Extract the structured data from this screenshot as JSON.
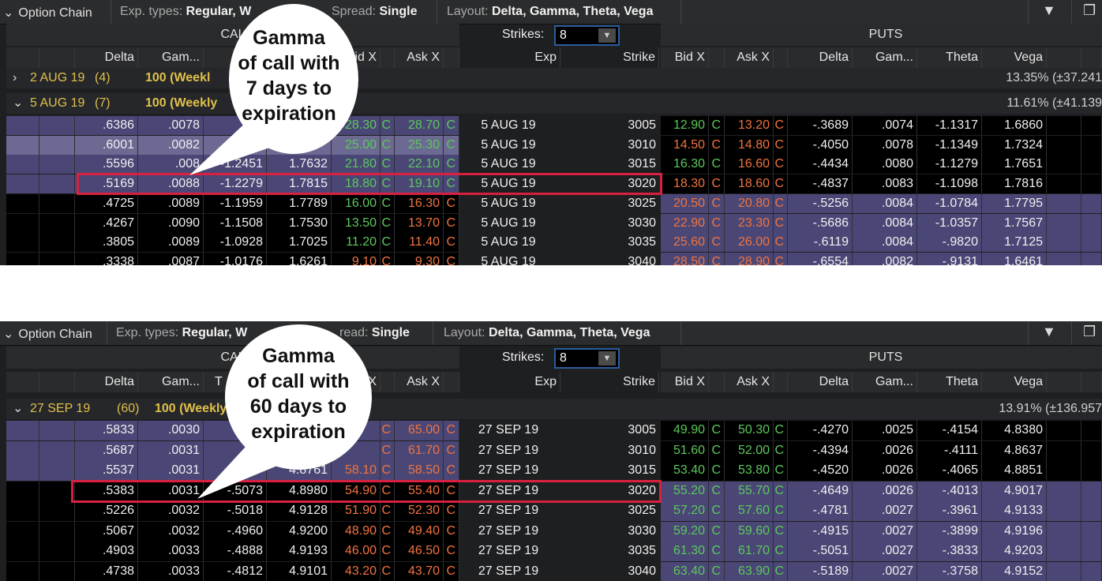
{
  "panels": [
    {
      "toolbar": {
        "title": "Option Chain",
        "exp_label": "Exp. types:",
        "exp_value": "Regular, W",
        "spread_label": "Spread:",
        "spread_value": "Single",
        "layout_label": "Layout:",
        "layout_value": "Delta, Gamma, Theta, Vega"
      },
      "calls_label": "CAL",
      "puts_label": "PUTS",
      "strikes_label": "Strikes:",
      "strikes_value": "8",
      "call_headers": [
        "",
        "",
        "Delta",
        "Gam...",
        "",
        "",
        "Bid X",
        "",
        "Ask X",
        ""
      ],
      "mid_headers": [
        "Exp",
        "Strike"
      ],
      "put_headers": [
        "Bid X",
        "",
        "Ask X",
        "",
        "Delta",
        "Gam...",
        "Theta",
        "Vega",
        "",
        ""
      ],
      "groups": [
        {
          "label": "2 AUG 19",
          "days": "(4)",
          "mult": "100 (Weekl",
          "iv": "13.35% (±37.241",
          "expanded": false
        },
        {
          "label": "5 AUG 19",
          "days": "(7)",
          "mult": "100 (Weekly",
          "iv": "11.61% (±41.139",
          "expanded": true
        }
      ],
      "rows": [
        {
          "c": [
            ".6386",
            ".0078",
            "",
            "",
            "28.30",
            "28.70"
          ],
          "cc": [
            "g",
            "g"
          ],
          "exp": "5 AUG 19",
          "strike": "3005",
          "p": [
            "12.90",
            "13.20",
            "-.3689",
            ".0074",
            "-1.1317",
            "1.6860"
          ],
          "pc": [
            "g",
            "o"
          ],
          "citm": true,
          "pitm": false
        },
        {
          "c": [
            ".6001",
            ".0082",
            "",
            "",
            "25.00",
            "25.30"
          ],
          "cc": [
            "g",
            "g"
          ],
          "exp": "5 AUG 19",
          "strike": "3010",
          "p": [
            "14.50",
            "14.80",
            "-.4050",
            ".0078",
            "-1.1349",
            "1.7324"
          ],
          "pc": [
            "o",
            "o"
          ],
          "citm": true,
          "pitm": false,
          "sel": true
        },
        {
          "c": [
            ".5596",
            ".008",
            "-1.2451",
            "1.7632",
            "21.80",
            "22.10"
          ],
          "cc": [
            "g",
            "g"
          ],
          "exp": "5 AUG 19",
          "strike": "3015",
          "p": [
            "16.30",
            "16.60",
            "-.4434",
            ".0080",
            "-1.1279",
            "1.7651"
          ],
          "pc": [
            "g",
            "o"
          ],
          "citm": true,
          "pitm": false
        },
        {
          "c": [
            ".5169",
            ".0088",
            "-1.2279",
            "1.7815",
            "18.80",
            "19.10"
          ],
          "cc": [
            "g",
            "g"
          ],
          "exp": "5 AUG 19",
          "strike": "3020",
          "p": [
            "18.30",
            "18.60",
            "-.4837",
            ".0083",
            "-1.1098",
            "1.7816"
          ],
          "pc": [
            "o",
            "o"
          ],
          "citm": true,
          "pitm": false
        },
        {
          "c": [
            ".4725",
            ".0089",
            "-1.1959",
            "1.7789",
            "16.00",
            "16.30"
          ],
          "cc": [
            "g",
            "o"
          ],
          "exp": "5 AUG 19",
          "strike": "3025",
          "p": [
            "20.50",
            "20.80",
            "-.5256",
            ".0084",
            "-1.0784",
            "1.7795"
          ],
          "pc": [
            "o",
            "o"
          ],
          "citm": false,
          "pitm": true
        },
        {
          "c": [
            ".4267",
            ".0090",
            "-1.1508",
            "1.7530",
            "13.50",
            "13.70"
          ],
          "cc": [
            "g",
            "o"
          ],
          "exp": "5 AUG 19",
          "strike": "3030",
          "p": [
            "22.90",
            "23.30",
            "-.5686",
            ".0084",
            "-1.0357",
            "1.7567"
          ],
          "pc": [
            "o",
            "o"
          ],
          "citm": false,
          "pitm": true
        },
        {
          "c": [
            ".3805",
            ".0089",
            "-1.0928",
            "1.7025",
            "11.20",
            "11.40"
          ],
          "cc": [
            "g",
            "o"
          ],
          "exp": "5 AUG 19",
          "strike": "3035",
          "p": [
            "25.60",
            "26.00",
            "-.6119",
            ".0084",
            "-.9820",
            "1.7125"
          ],
          "pc": [
            "o",
            "o"
          ],
          "citm": false,
          "pitm": true
        },
        {
          "c": [
            ".3338",
            ".0087",
            "-1.0176",
            "1.6261",
            "9.10",
            "9.30"
          ],
          "cc": [
            "o",
            "o"
          ],
          "exp": "5 AUG 19",
          "strike": "3040",
          "p": [
            "28.50",
            "28.90",
            "-.6554",
            ".0082",
            "-.9131",
            "1.6461"
          ],
          "pc": [
            "o",
            "o"
          ],
          "citm": false,
          "pitm": true
        }
      ],
      "highlight_row": 3,
      "callout": [
        "Gamma",
        "of call with",
        "7 days to",
        "expiration"
      ]
    },
    {
      "toolbar": {
        "title": "Option Chain",
        "exp_label": "Exp. types:",
        "exp_value": "Regular, W",
        "spread_label": "read:",
        "spread_value": "Single",
        "layout_label": "Layout:",
        "layout_value": "Delta, Gamma, Theta, Vega"
      },
      "calls_label": "CAL",
      "puts_label": "PUTS",
      "strikes_label": "Strikes:",
      "strikes_value": "8",
      "call_headers": [
        "",
        "",
        "Delta",
        "Gam...",
        "T",
        "",
        "d X",
        "",
        "Ask X",
        ""
      ],
      "mid_headers": [
        "Exp",
        "Strike"
      ],
      "put_headers": [
        "Bid X",
        "",
        "Ask X",
        "",
        "Delta",
        "Gam...",
        "Theta",
        "Vega",
        "",
        ""
      ],
      "groups": [
        {
          "label": "27 SEP 19",
          "days": "(60)",
          "mult": "100 (Weekly",
          "iv": "13.91% (±136.957",
          "expanded": true
        }
      ],
      "rows": [
        {
          "c": [
            ".5833",
            ".0030",
            "",
            "",
            "",
            "65.00"
          ],
          "cc": [
            "o",
            "o"
          ],
          "exp": "27 SEP 19",
          "strike": "3005",
          "p": [
            "49.90",
            "50.30",
            "-.4270",
            ".0025",
            "-.4154",
            "4.8380"
          ],
          "pc": [
            "g",
            "g"
          ],
          "citm": true,
          "pitm": false
        },
        {
          "c": [
            ".5687",
            ".0031",
            "",
            "",
            "",
            "61.70"
          ],
          "cc": [
            "o",
            "o"
          ],
          "exp": "27 SEP 19",
          "strike": "3010",
          "p": [
            "51.60",
            "52.00",
            "-.4394",
            ".0026",
            "-.4111",
            "4.8637"
          ],
          "pc": [
            "g",
            "g"
          ],
          "citm": true,
          "pitm": false
        },
        {
          "c": [
            ".5537",
            ".0031",
            "",
            "4.8761",
            "58.10",
            "58.50"
          ],
          "cc": [
            "o",
            "o"
          ],
          "exp": "27 SEP 19",
          "strike": "3015",
          "p": [
            "53.40",
            "53.80",
            "-.4520",
            ".0026",
            "-.4065",
            "4.8851"
          ],
          "pc": [
            "g",
            "g"
          ],
          "citm": true,
          "pitm": false
        },
        {
          "c": [
            ".5383",
            ".0031",
            "-.5073",
            "4.8980",
            "54.90",
            "55.40"
          ],
          "cc": [
            "o",
            "o"
          ],
          "exp": "27 SEP 19",
          "strike": "3020",
          "p": [
            "55.20",
            "55.70",
            "-.4649",
            ".0026",
            "-.4013",
            "4.9017"
          ],
          "pc": [
            "g",
            "g"
          ],
          "citm": false,
          "pitm": true
        },
        {
          "c": [
            ".5226",
            ".0032",
            "-.5018",
            "4.9128",
            "51.90",
            "52.30"
          ],
          "cc": [
            "o",
            "o"
          ],
          "exp": "27 SEP 19",
          "strike": "3025",
          "p": [
            "57.20",
            "57.60",
            "-.4781",
            ".0027",
            "-.3961",
            "4.9133"
          ],
          "pc": [
            "g",
            "g"
          ],
          "citm": false,
          "pitm": true
        },
        {
          "c": [
            ".5067",
            ".0032",
            "-.4960",
            "4.9200",
            "48.90",
            "49.40"
          ],
          "cc": [
            "o",
            "o"
          ],
          "exp": "27 SEP 19",
          "strike": "3030",
          "p": [
            "59.20",
            "59.60",
            "-.4915",
            ".0027",
            "-.3899",
            "4.9196"
          ],
          "pc": [
            "g",
            "g"
          ],
          "citm": false,
          "pitm": true
        },
        {
          "c": [
            ".4903",
            ".0033",
            "-.4888",
            "4.9193",
            "46.00",
            "46.50"
          ],
          "cc": [
            "o",
            "o"
          ],
          "exp": "27 SEP 19",
          "strike": "3035",
          "p": [
            "61.30",
            "61.70",
            "-.5051",
            ".0027",
            "-.3833",
            "4.9203"
          ],
          "pc": [
            "g",
            "g"
          ],
          "citm": false,
          "pitm": true
        },
        {
          "c": [
            ".4738",
            ".0033",
            "-.4812",
            "4.9101",
            "43.20",
            "43.70"
          ],
          "cc": [
            "o",
            "o"
          ],
          "exp": "27 SEP 19",
          "strike": "3040",
          "p": [
            "63.40",
            "63.90",
            "-.5189",
            ".0027",
            "-.3758",
            "4.9152"
          ],
          "pc": [
            "g",
            "g"
          ],
          "citm": false,
          "pitm": true
        }
      ],
      "highlight_row": 3,
      "callout": [
        "Gamma",
        "of call with",
        "60 days to",
        "expiration"
      ]
    }
  ],
  "colors": {
    "itm": "#4a4776",
    "itm_selected": "#6c6993",
    "otm": "#000000",
    "bid_up": "#5cc85c",
    "bid_down": "#f0733f",
    "highlight": "#d82040"
  },
  "icons": [
    "chevron-down-icon",
    "filter-triangle-icon",
    "detach-window-icon",
    "dropdown-arrow-icon"
  ]
}
